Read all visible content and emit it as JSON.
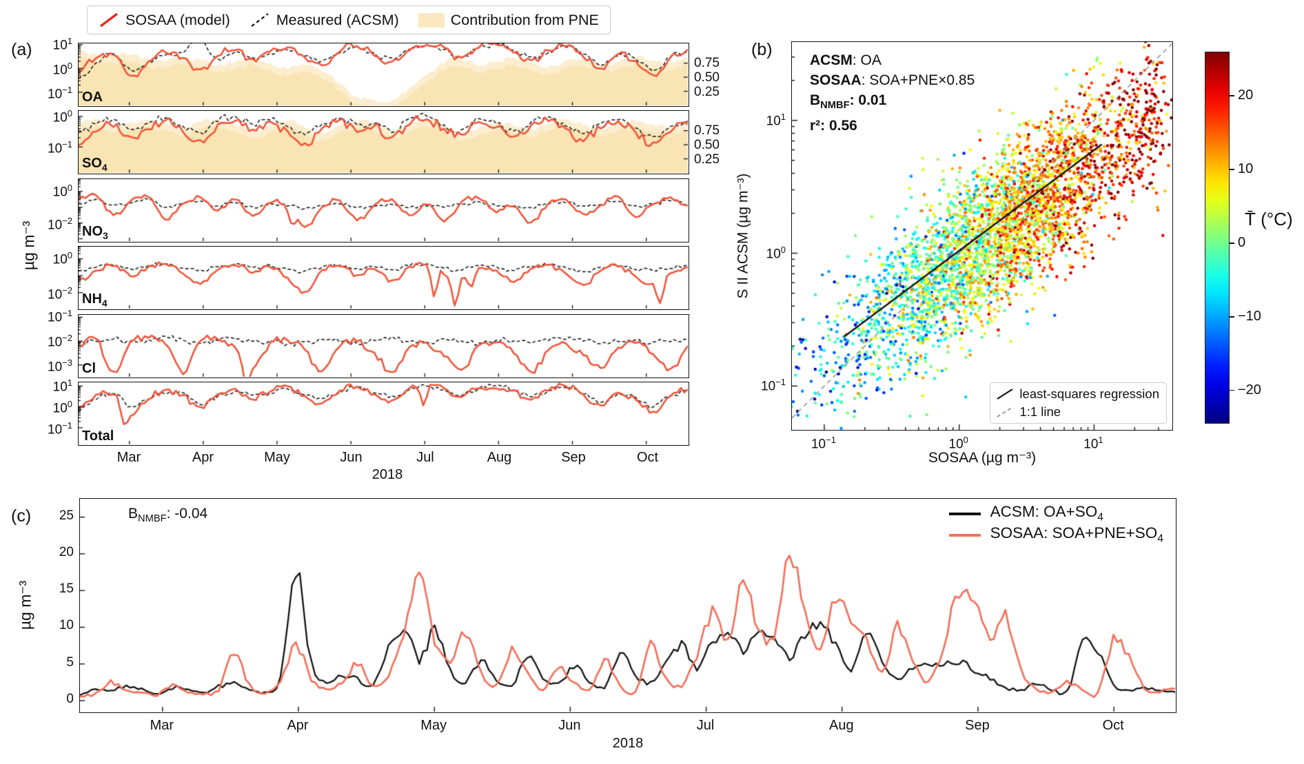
{
  "chart_data": [
    {
      "id": "a",
      "type": "line",
      "panel_label": "(a)",
      "ylabel": "µg m⁻³",
      "year_label": "2018",
      "x_categories": [
        "Mar",
        "Apr",
        "May",
        "Jun",
        "Jul",
        "Aug",
        "Sep",
        "Oct"
      ],
      "legend": {
        "position": "top",
        "entries": [
          {
            "label": "SOSAA (model)",
            "style": "line",
            "color": "#e8291c"
          },
          {
            "label": "Measured (ACSM)",
            "style": "dashed",
            "color": "#111111"
          },
          {
            "label": "Contribution from PNE",
            "style": "fill",
            "color": "#fbe7c0"
          }
        ]
      },
      "right_axis": {
        "ticks": [
          {
            "v": 0.75,
            "label": "0.75"
          },
          {
            "v": 0.5,
            "label": "0.50"
          },
          {
            "v": 0.25,
            "label": "0.25"
          }
        ],
        "range": [
          0,
          1.1
        ],
        "applies_to": [
          "OA",
          "SO4"
        ]
      },
      "colors": {
        "model": "#f1553b",
        "measured": "#111111",
        "pne_fill": "#f7d89b"
      },
      "subplots": [
        {
          "name": "OA",
          "name_parts": [
            {
              "t": "OA"
            }
          ],
          "ylog_range": [
            1.05,
            -1.55
          ],
          "ytick_exponents": [
            1,
            0,
            -1
          ],
          "has_fill": true,
          "model_log10": [
            -0.15,
            0.45,
            0.55,
            -0.35,
            0.3,
            0.7,
            0.45,
            -0.05,
            0.55,
            0.8,
            0.35,
            0.7,
            0.9,
            0.45,
            0.15,
            0.75,
            0.95,
            0.55,
            0.25,
            0.8,
            1.0,
            0.85,
            0.4,
            0.9,
            1.0,
            0.7,
            0.3,
            0.75,
            0.95,
            0.5,
            0.0,
            0.6,
            0.3,
            -0.3,
            0.45,
            0.8
          ],
          "measured_log10": [
            -0.45,
            0.2,
            0.6,
            -0.05,
            0.25,
            0.6,
            0.65,
            1.2,
            0.4,
            0.7,
            0.45,
            0.6,
            0.8,
            0.55,
            0.3,
            0.65,
            0.9,
            0.6,
            0.4,
            0.75,
            0.95,
            0.8,
            0.5,
            0.85,
            1.0,
            0.75,
            0.45,
            0.7,
            0.9,
            0.6,
            0.15,
            0.55,
            0.4,
            -0.1,
            0.5,
            0.7
          ],
          "pne_fraction": [
            0.96,
            0.92,
            0.88,
            0.9,
            0.82,
            0.78,
            0.85,
            0.8,
            0.72,
            0.78,
            0.85,
            0.75,
            0.65,
            0.72,
            0.6,
            0.38,
            0.15,
            0.08,
            0.1,
            0.3,
            0.55,
            0.75,
            0.82,
            0.7,
            0.78,
            0.85,
            0.75,
            0.68,
            0.78,
            0.85,
            0.72,
            0.78,
            0.85,
            0.8,
            0.75,
            0.85
          ]
        },
        {
          "name": "SO4",
          "name_parts": [
            {
              "t": "SO"
            },
            {
              "t": "4",
              "sub": true
            }
          ],
          "ylog_range": [
            0.18,
            -1.85
          ],
          "ytick_exponents": [
            0,
            -1
          ],
          "has_fill": true,
          "model_log10": [
            -0.9,
            -0.5,
            -0.3,
            -0.7,
            -0.4,
            -0.15,
            -0.5,
            -0.8,
            -0.3,
            -0.1,
            -0.4,
            -0.2,
            -0.5,
            -0.9,
            -0.4,
            -0.15,
            -0.5,
            -0.3,
            -0.7,
            -0.25,
            -0.1,
            -0.4,
            -0.6,
            -0.2,
            -0.35,
            -0.7,
            -0.3,
            -0.15,
            -0.45,
            -0.8,
            -0.35,
            -0.2,
            -0.55,
            -0.9,
            -0.5,
            -0.25
          ],
          "measured_log10": [
            -0.5,
            -0.25,
            -0.1,
            -0.4,
            -0.2,
            -0.05,
            -0.35,
            -0.55,
            -0.15,
            0.0,
            -0.25,
            -0.1,
            -0.35,
            -0.6,
            -0.25,
            -0.05,
            -0.3,
            -0.2,
            -0.5,
            -0.1,
            0.0,
            -0.3,
            -0.45,
            -0.1,
            -0.2,
            -0.5,
            -0.2,
            -0.05,
            -0.3,
            -0.6,
            -0.25,
            -0.1,
            -0.4,
            -0.65,
            -0.35,
            -0.15
          ],
          "pne_fraction": [
            0.9,
            0.95,
            0.85,
            0.9,
            0.94,
            0.88,
            0.8,
            0.9,
            0.95,
            0.85,
            0.75,
            0.85,
            0.92,
            0.8,
            0.7,
            0.85,
            0.92,
            0.88,
            0.75,
            0.85,
            0.95,
            0.85,
            0.7,
            0.8,
            0.9,
            0.85,
            0.75,
            0.88,
            0.94,
            0.85,
            0.78,
            0.88,
            0.92,
            0.85,
            0.8,
            0.9
          ]
        },
        {
          "name": "NO3",
          "name_parts": [
            {
              "t": "NO"
            },
            {
              "t": "3",
              "sub": true
            }
          ],
          "ylog_range": [
            0.78,
            -3.15
          ],
          "ytick_exponents": [
            0,
            -2
          ],
          "has_fill": false,
          "model_log10": [
            -0.5,
            -0.2,
            -1.5,
            -0.6,
            -0.3,
            -1.8,
            -0.8,
            -0.4,
            -1.2,
            -0.5,
            -1.6,
            -0.7,
            -0.9,
            -2.3,
            -1.0,
            -0.6,
            -1.8,
            -0.9,
            -0.5,
            -1.5,
            -0.8,
            -1.9,
            -0.7,
            -0.4,
            -1.3,
            -0.9,
            -2.0,
            -0.8,
            -0.5,
            -1.4,
            -0.9,
            -0.3,
            -1.6,
            -0.8,
            -0.4,
            -0.9
          ],
          "measured_log10": [
            -0.8,
            -0.5,
            -0.9,
            -0.7,
            -0.5,
            -1.0,
            -0.8,
            -0.6,
            -0.9,
            -0.7,
            -1.0,
            -0.8,
            -0.9,
            -1.1,
            -0.9,
            -0.8,
            -1.0,
            -0.9,
            -0.8,
            -1.0,
            -0.9,
            -1.0,
            -0.8,
            -0.7,
            -0.9,
            -0.9,
            -1.0,
            -0.8,
            -0.7,
            -0.9,
            -0.8,
            -0.6,
            -0.9,
            -0.8,
            -0.6,
            -0.8
          ]
        },
        {
          "name": "NH4",
          "name_parts": [
            {
              "t": "NH"
            },
            {
              "t": "4",
              "sub": true
            }
          ],
          "ylog_range": [
            0.72,
            -2.95
          ],
          "ytick_exponents": [
            0,
            -2
          ],
          "has_fill": false,
          "model_log10": [
            -1.3,
            -0.7,
            -0.4,
            -1.0,
            -0.5,
            -0.3,
            -0.9,
            -1.5,
            -0.6,
            -0.35,
            -0.8,
            -0.5,
            -1.1,
            -2.0,
            -0.7,
            -0.4,
            -1.0,
            -0.6,
            -1.3,
            -0.5,
            -0.35,
            -0.9,
            -1.2,
            -0.5,
            -0.7,
            -1.4,
            -0.6,
            -0.4,
            -0.9,
            -1.6,
            -0.7,
            -0.45,
            -1.0,
            -1.5,
            -0.8,
            -0.5
          ],
          "measured_log10": [
            -0.7,
            -0.5,
            -0.35,
            -0.6,
            -0.4,
            -0.3,
            -0.55,
            -0.7,
            -0.45,
            -0.3,
            -0.5,
            -0.4,
            -0.6,
            -0.75,
            -0.5,
            -0.35,
            -0.55,
            -0.45,
            -0.65,
            -0.4,
            -0.3,
            -0.55,
            -0.65,
            -0.4,
            -0.5,
            -0.7,
            -0.45,
            -0.35,
            -0.55,
            -0.75,
            -0.5,
            -0.4,
            -0.6,
            -0.7,
            -0.55,
            -0.4
          ]
        },
        {
          "name": "Cl",
          "name_parts": [
            {
              "t": "Cl"
            }
          ],
          "ylog_range": [
            -0.9,
            -3.5
          ],
          "ytick_exponents": [
            -1,
            -2,
            -3
          ],
          "has_fill": false,
          "model_log10": [
            -2.2,
            -1.9,
            -3.3,
            -2.0,
            -1.85,
            -2.1,
            -3.35,
            -2.0,
            -1.9,
            -2.3,
            -3.2,
            -2.1,
            -1.95,
            -2.4,
            -3.3,
            -2.2,
            -2.0,
            -2.5,
            -3.35,
            -2.3,
            -2.1,
            -2.6,
            -3.2,
            -2.2,
            -2.05,
            -2.5,
            -3.3,
            -2.4,
            -2.15,
            -2.6,
            -3.1,
            -2.3,
            -2.1,
            -2.5,
            -3.2,
            -2.2
          ],
          "measured_log10": [
            -2.1,
            -2.0,
            -1.9,
            -2.05,
            -1.95,
            -1.8,
            -2.0,
            -2.1,
            -1.95,
            -1.9,
            -2.05,
            -2.0,
            -2.15,
            -2.05,
            -1.95,
            -2.0,
            -2.1,
            -1.95,
            -1.85,
            -2.0,
            -2.05,
            -1.9,
            -2.0,
            -2.1,
            -1.95,
            -2.0,
            -2.05,
            -1.95,
            -1.9,
            -2.0,
            -2.1,
            -2.0,
            -1.95,
            -2.05,
            -2.0,
            -1.95
          ]
        },
        {
          "name": "Total",
          "name_parts": [
            {
              "t": "Total"
            }
          ],
          "ylog_range": [
            1.18,
            -1.8
          ],
          "ytick_exponents": [
            1,
            0,
            -1
          ],
          "has_fill": false,
          "model_log10": [
            0.0,
            0.55,
            0.6,
            -0.4,
            0.4,
            0.8,
            0.55,
            0.0,
            0.6,
            0.85,
            0.4,
            0.75,
            0.95,
            0.5,
            0.2,
            0.8,
            1.0,
            0.6,
            0.3,
            0.85,
            1.05,
            0.9,
            0.45,
            0.95,
            0.9,
            0.75,
            0.35,
            0.8,
            1.0,
            0.55,
            0.05,
            0.65,
            0.35,
            -0.25,
            0.5,
            0.85
          ],
          "measured_log10": [
            -0.2,
            0.35,
            0.65,
            0.0,
            0.35,
            0.65,
            0.7,
            0.15,
            0.5,
            0.75,
            0.55,
            0.65,
            0.85,
            0.6,
            0.4,
            0.7,
            0.95,
            0.65,
            0.5,
            0.8,
            1.0,
            0.85,
            0.55,
            0.9,
            1.05,
            0.8,
            0.5,
            0.75,
            0.95,
            0.65,
            0.25,
            0.6,
            0.45,
            0.0,
            0.55,
            0.75
          ]
        }
      ]
    },
    {
      "id": "b",
      "type": "scatter",
      "panel_label": "(b)",
      "xlabel": "SOSAA (µg m⁻³)",
      "ylabel": "S II ACSM (µg m⁻³)",
      "xlog_range": [
        -1.24,
        1.58
      ],
      "ylog_range": [
        1.59,
        -1.33
      ],
      "xtick_exponents": [
        -1,
        0,
        1
      ],
      "ytick_exponents": [
        1,
        0,
        -1
      ],
      "annotation_lines": [
        [
          {
            "t": "ACSM",
            "b": true
          },
          {
            "t": ": OA"
          }
        ],
        [
          {
            "t": "SOSAA",
            "b": true
          },
          {
            "t": ": SOA+PNE×0.85"
          }
        ],
        [
          {
            "t": "B",
            "b": true
          },
          {
            "t": "NMBF",
            "b": true,
            "sub": true
          },
          {
            "t": ": 0.01",
            "b": true
          }
        ],
        [
          {
            "t": "r²: 0.56",
            "b": true
          }
        ]
      ],
      "stats": {
        "B_NMBF": 0.01,
        "r2": 0.56
      },
      "legend": {
        "position": "lower right",
        "entries": [
          {
            "label": "least-squares regression",
            "style": "line",
            "color": "#111111"
          },
          {
            "label": "1:1 line",
            "style": "dashed",
            "color": "#909090"
          }
        ]
      },
      "regression": {
        "x1": 0.14,
        "y1": 0.235,
        "x2": 11.4,
        "y2": 6.6
      },
      "one_to_one": {
        "slope": 1,
        "intercept": 0
      },
      "scatter_generation": {
        "n": 3600,
        "seed": 42,
        "t_mean": 0.28,
        "t_sd": 0.6,
        "slope": 0.755,
        "intercept": -0.06,
        "x_noise_sd": 0.1,
        "y_noise_sd": 0.29,
        "temp_slope": 13,
        "temp_offset": 3,
        "temp_noise_sd": 7.5
      },
      "colorbar": {
        "label": "T̄ (°C)",
        "range": [
          26,
          -24.5
        ],
        "colormap": "jet",
        "ticks": [
          {
            "v": 20,
            "label": "20"
          },
          {
            "v": 10,
            "label": "10"
          },
          {
            "v": 0,
            "label": "0"
          },
          {
            "v": -10,
            "label": "−10"
          },
          {
            "v": -20,
            "label": "−20"
          }
        ]
      }
    },
    {
      "id": "c",
      "type": "line",
      "panel_label": "(c)",
      "ylabel": "µg m⁻³",
      "year_label": "2018",
      "x_categories": [
        "Mar",
        "Apr",
        "May",
        "Jun",
        "Jul",
        "Aug",
        "Sep",
        "Oct"
      ],
      "annotation": [
        {
          "t": "B"
        },
        {
          "t": "NMBF",
          "sub": true
        },
        {
          "t": ": -0.04"
        }
      ],
      "stats": {
        "B_NMBF": -0.04
      },
      "ylim": [
        -1.5,
        27.5
      ],
      "yticks": [
        {
          "v": 0,
          "label": "0"
        },
        {
          "v": 5,
          "label": "5"
        },
        {
          "v": 10,
          "label": "10"
        },
        {
          "v": 15,
          "label": "15"
        },
        {
          "v": 20,
          "label": "20"
        },
        {
          "v": 25,
          "label": "25"
        }
      ],
      "legend": {
        "position": "upper right",
        "entries": [
          {
            "label_parts": [
              {
                "t": "ACSM: OA+SO"
              },
              {
                "t": "4",
                "sub": true
              }
            ],
            "color": "#111111"
          },
          {
            "label_parts": [
              {
                "t": "SOSAA: SOA+PNE+SO"
              },
              {
                "t": "4",
                "sub": true
              }
            ],
            "color": "#f4705a"
          }
        ]
      },
      "colors": {
        "acsm": "#111111",
        "sosaa": "#f4705a"
      },
      "acsm": [
        0.8,
        1.5,
        1.2,
        2.0,
        1.5,
        1.0,
        1.8,
        1.4,
        1.1,
        1.9,
        2.4,
        1.6,
        1.2,
        3.0,
        18.2,
        5.0,
        2.5,
        3.5,
        2.8,
        2.0,
        7.0,
        9.8,
        5.5,
        9.5,
        4.0,
        2.5,
        5.5,
        3.0,
        2.0,
        5.8,
        3.2,
        2.2,
        4.5,
        2.8,
        1.8,
        6.5,
        3.5,
        2.5,
        5.0,
        7.5,
        4.5,
        8.0,
        9.5,
        7.0,
        9.8,
        8.5,
        6.0,
        9.0,
        10.2,
        7.5,
        4.0,
        9.5,
        5.0,
        3.0,
        4.5,
        5.2,
        4.8,
        5.5,
        4.2,
        3.0,
        1.8,
        1.5,
        2.2,
        1.6,
        1.2,
        7.8,
        6.5,
        2.0,
        1.5,
        1.8,
        1.4,
        1.2
      ],
      "sosaa": [
        0.5,
        1.0,
        2.5,
        1.5,
        1.0,
        0.8,
        2.0,
        1.2,
        0.9,
        1.5,
        6.5,
        2.0,
        1.0,
        2.5,
        7.5,
        3.0,
        1.5,
        2.5,
        5.0,
        2.0,
        3.5,
        9.0,
        17.3,
        8.0,
        5.5,
        9.5,
        4.0,
        2.0,
        7.0,
        4.0,
        1.5,
        4.8,
        2.5,
        1.5,
        5.5,
        2.0,
        1.2,
        7.5,
        3.0,
        2.0,
        6.0,
        12.0,
        8.0,
        16.0,
        10.0,
        8.5,
        20.3,
        12.0,
        7.0,
        14.5,
        10.5,
        8.0,
        3.5,
        10.0,
        5.5,
        2.5,
        7.5,
        15.2,
        13.0,
        8.5,
        11.5,
        4.0,
        1.5,
        1.2,
        2.5,
        1.4,
        1.0,
        8.2,
        6.0,
        1.8,
        1.3,
        1.5
      ]
    }
  ]
}
